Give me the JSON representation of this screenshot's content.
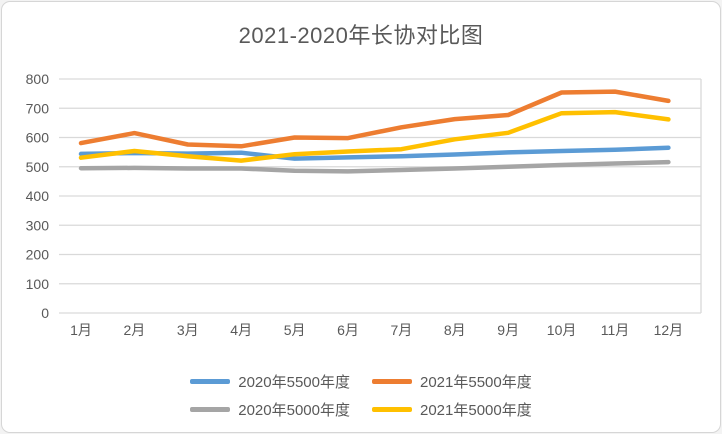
{
  "chart_data": {
    "type": "line",
    "title": "2021-2020年长协对比图",
    "categories": [
      "1月",
      "2月",
      "3月",
      "4月",
      "5月",
      "6月",
      "7月",
      "8月",
      "9月",
      "10月",
      "11月",
      "12月"
    ],
    "series": [
      {
        "name": "2020年5500年度",
        "color": "#5B9BD5",
        "values": [
          544,
          547,
          545,
          548,
          528,
          532,
          536,
          542,
          549,
          554,
          558,
          565
        ]
      },
      {
        "name": "2021年5500年度",
        "color": "#ED7D31",
        "values": [
          581,
          615,
          576,
          570,
          600,
          598,
          635,
          663,
          677,
          754,
          757,
          725
        ]
      },
      {
        "name": "2020年5000年度",
        "color": "#A5A5A5",
        "values": [
          495,
          496,
          494,
          494,
          486,
          484,
          489,
          494,
          500,
          506,
          511,
          516
        ]
      },
      {
        "name": "2021年5000年度",
        "color": "#FFC000",
        "values": [
          531,
          554,
          536,
          521,
          543,
          552,
          560,
          594,
          616,
          683,
          687,
          662
        ]
      }
    ],
    "xlabel": "",
    "ylabel": "",
    "ylim": [
      0,
      800
    ],
    "yticks": [
      0,
      100,
      200,
      300,
      400,
      500,
      600,
      700,
      800
    ],
    "grid": true,
    "gridline_color": "#D9D9D9",
    "text_color": "#595959",
    "legend_position": "bottom",
    "legend_rows": [
      [
        0,
        1
      ],
      [
        2,
        3
      ]
    ]
  }
}
